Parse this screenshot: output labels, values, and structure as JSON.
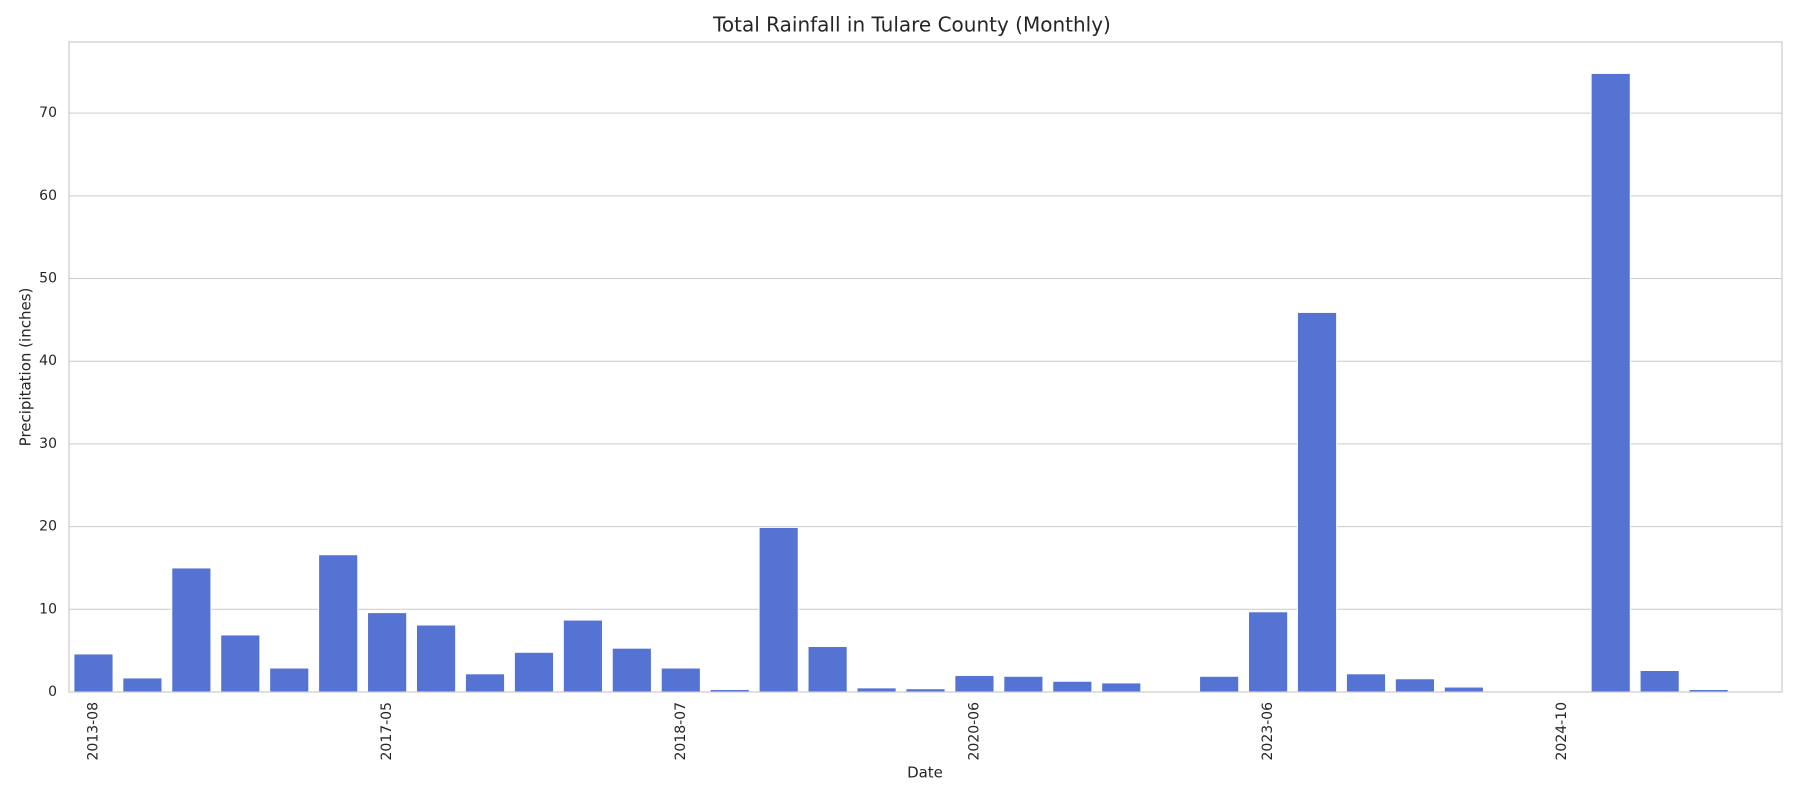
{
  "chart_data": {
    "type": "bar",
    "title": "Total Rainfall in Tulare County (Monthly)",
    "x_label": "Date",
    "y_label": "Precipitation (inches)",
    "categories": [
      "2013-08",
      null,
      null,
      null,
      null,
      null,
      "2017-05",
      null,
      null,
      null,
      null,
      null,
      "2018-07",
      null,
      null,
      null,
      null,
      null,
      "2020-06",
      null,
      null,
      null,
      null,
      null,
      "2023-06",
      null,
      null,
      null,
      null,
      null,
      "2024-10",
      null,
      null,
      null,
      null
    ],
    "values": [
      4.6,
      1.7,
      15.0,
      6.9,
      2.9,
      16.6,
      9.6,
      8.1,
      2.2,
      4.8,
      8.7,
      5.3,
      2.9,
      0.3,
      19.9,
      5.5,
      0.5,
      0.4,
      2.0,
      1.9,
      1.3,
      1.1,
      0,
      1.9,
      9.7,
      45.9,
      2.2,
      1.6,
      0.6,
      0,
      0,
      74.8,
      2.6,
      0.3,
      0
    ],
    "color": "#5473d3",
    "ylim": [
      0,
      78.6
    ],
    "yticks": [
      0,
      10,
      20,
      30,
      40,
      50,
      60,
      70
    ],
    "grid": true
  }
}
